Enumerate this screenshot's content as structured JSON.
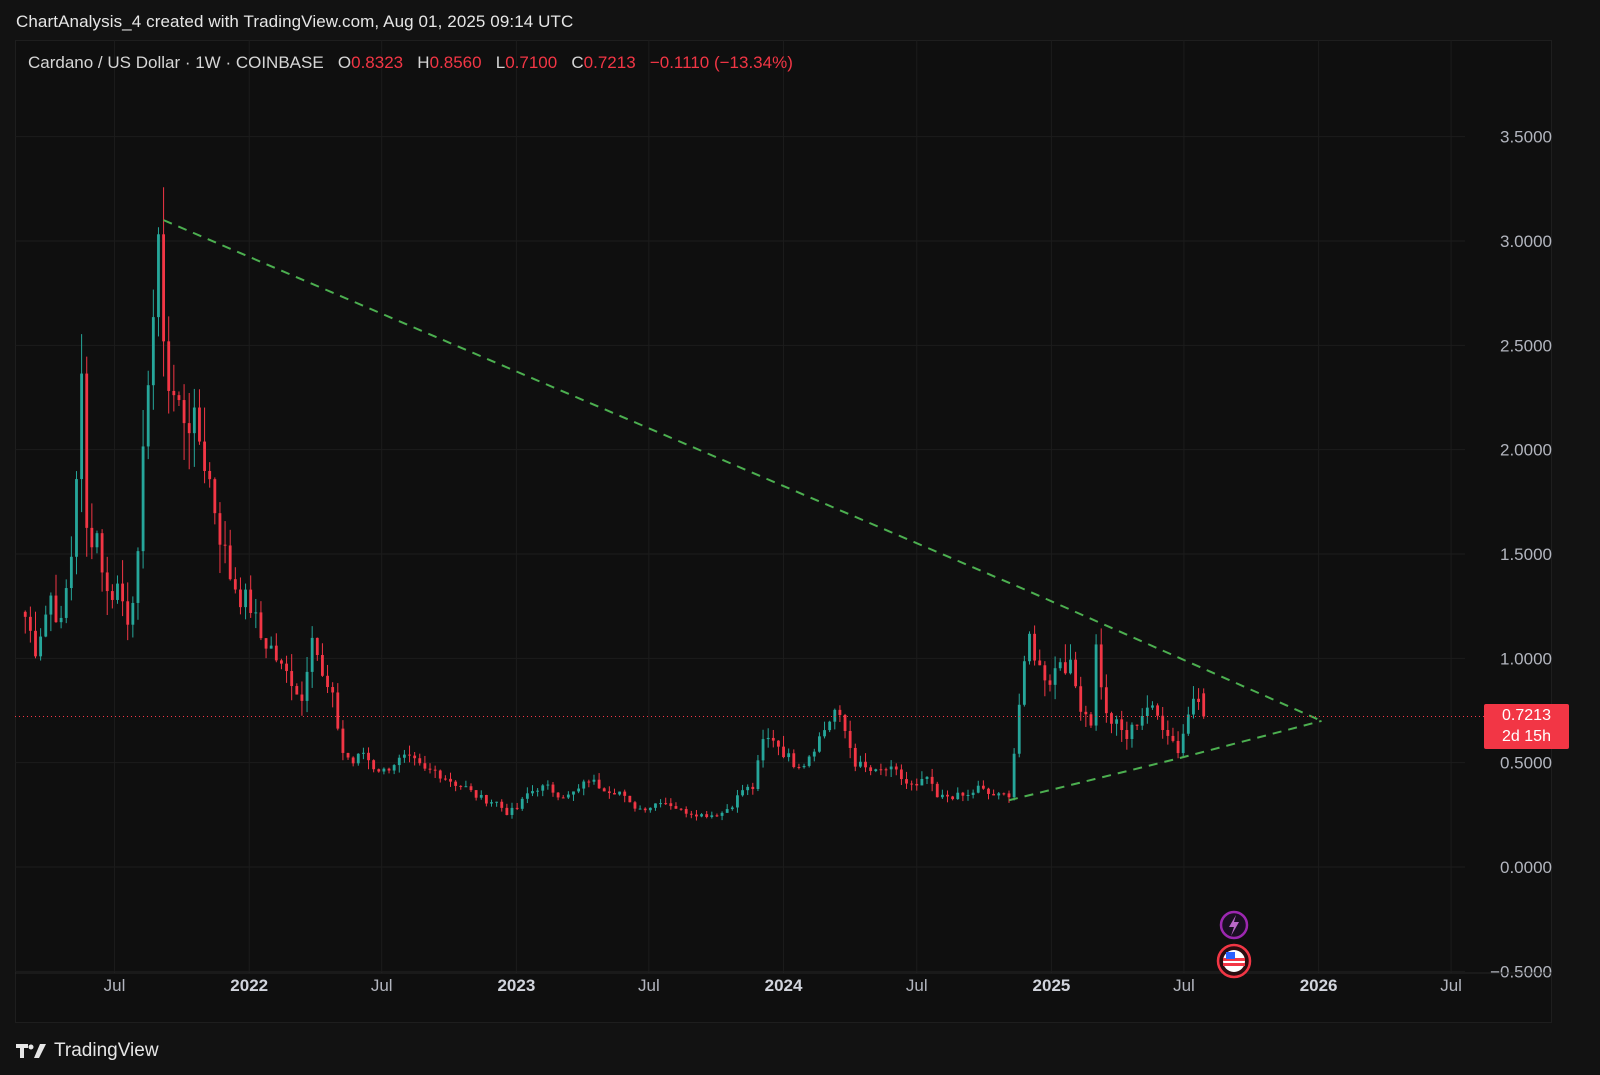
{
  "header": {
    "title": "ChartAnalysis_4 created with TradingView.com, Aug 01, 2025 09:14 UTC"
  },
  "legend": {
    "symbol": "Cardano / US Dollar · 1W · COINBASE",
    "open_key": "O",
    "open": "0.8323",
    "high_key": "H",
    "high": "0.8560",
    "low_key": "L",
    "low": "0.7100",
    "close_key": "C",
    "close": "0.7213",
    "change": "−0.1110 (−13.34%)"
  },
  "price_badge": {
    "price": "0.7213",
    "countdown": "2d 15h"
  },
  "footer": {
    "brand": "TradingView"
  },
  "colors": {
    "up": "#26a69a",
    "down": "#f23645",
    "trendline": "#4caf50",
    "grid": "#1c1c1c",
    "axis_text": "#b2b5be",
    "last_price": "#f23645"
  },
  "icons": [
    "lightning-event-icon",
    "us-flag-event-icon",
    "tradingview-logo-icon"
  ],
  "chart_data": {
    "type": "candlestick",
    "symbol": "ADAUSD",
    "timeframe": "1W",
    "x_ticks": [
      {
        "label": "Jul",
        "date": "2021-07-01",
        "bold": false
      },
      {
        "label": "2022",
        "date": "2022-01-01",
        "bold": true
      },
      {
        "label": "Jul",
        "date": "2022-07-01",
        "bold": false
      },
      {
        "label": "2023",
        "date": "2023-01-01",
        "bold": true
      },
      {
        "label": "Jul",
        "date": "2023-07-01",
        "bold": false
      },
      {
        "label": "2024",
        "date": "2024-01-01",
        "bold": true
      },
      {
        "label": "Jul",
        "date": "2024-07-01",
        "bold": false
      },
      {
        "label": "2025",
        "date": "2025-01-01",
        "bold": true
      },
      {
        "label": "Jul",
        "date": "2025-07-01",
        "bold": false
      },
      {
        "label": "2026",
        "date": "2026-01-01",
        "bold": true
      },
      {
        "label": "Jul",
        "date": "2026-07-01",
        "bold": false
      }
    ],
    "y_ticks": [
      "3.5000",
      "3.0000",
      "2.5000",
      "2.0000",
      "1.5000",
      "1.0000",
      "0.5000",
      "0.0000",
      "−0.5000"
    ],
    "y_tick_values": [
      3.5,
      3.0,
      2.5,
      2.0,
      1.5,
      1.0,
      0.5,
      0.0,
      -0.5
    ],
    "xlim": [
      "2021-02-15",
      "2026-07-20"
    ],
    "ylim": [
      -0.52,
      3.7
    ],
    "last_price": 0.7213,
    "anchors": [
      [
        "2021-03-01",
        1.2
      ],
      [
        "2021-03-15",
        1.05
      ],
      [
        "2021-04-05",
        1.3
      ],
      [
        "2021-04-19",
        1.15
      ],
      [
        "2021-05-03",
        1.5
      ],
      [
        "2021-05-17",
        2.3
      ],
      [
        "2021-05-24",
        1.6
      ],
      [
        "2021-06-07",
        1.6
      ],
      [
        "2021-06-21",
        1.3
      ],
      [
        "2021-07-05",
        1.35
      ],
      [
        "2021-07-19",
        1.2
      ],
      [
        "2021-08-02",
        1.45
      ],
      [
        "2021-08-16",
        2.4
      ],
      [
        "2021-08-30",
        2.9
      ],
      [
        "2021-09-13",
        2.3
      ],
      [
        "2021-09-27",
        2.2
      ],
      [
        "2021-10-11",
        2.15
      ],
      [
        "2021-10-25",
        2.05
      ],
      [
        "2021-11-08",
        1.85
      ],
      [
        "2021-11-22",
        1.6
      ],
      [
        "2021-12-06",
        1.4
      ],
      [
        "2021-12-20",
        1.3
      ],
      [
        "2022-01-03",
        1.25
      ],
      [
        "2022-01-17",
        1.1
      ],
      [
        "2022-01-31",
        1.05
      ],
      [
        "2022-02-14",
        0.95
      ],
      [
        "2022-02-28",
        0.9
      ],
      [
        "2022-03-14",
        0.8
      ],
      [
        "2022-03-28",
        1.15
      ],
      [
        "2022-04-11",
        0.9
      ],
      [
        "2022-04-25",
        0.8
      ],
      [
        "2022-05-09",
        0.55
      ],
      [
        "2022-05-23",
        0.5
      ],
      [
        "2022-06-06",
        0.55
      ],
      [
        "2022-06-20",
        0.48
      ],
      [
        "2022-07-04",
        0.46
      ],
      [
        "2022-07-18",
        0.5
      ],
      [
        "2022-08-01",
        0.52
      ],
      [
        "2022-08-15",
        0.5
      ],
      [
        "2022-08-29",
        0.46
      ],
      [
        "2022-09-12",
        0.46
      ],
      [
        "2022-09-26",
        0.43
      ],
      [
        "2022-10-10",
        0.4
      ],
      [
        "2022-10-24",
        0.38
      ],
      [
        "2022-11-07",
        0.34
      ],
      [
        "2022-11-21",
        0.32
      ],
      [
        "2022-12-05",
        0.31
      ],
      [
        "2022-12-19",
        0.26
      ],
      [
        "2023-01-02",
        0.28
      ],
      [
        "2023-01-16",
        0.35
      ],
      [
        "2023-01-30",
        0.38
      ],
      [
        "2023-02-13",
        0.38
      ],
      [
        "2023-02-27",
        0.35
      ],
      [
        "2023-03-13",
        0.34
      ],
      [
        "2023-03-27",
        0.37
      ],
      [
        "2023-04-10",
        0.42
      ],
      [
        "2023-04-24",
        0.39
      ],
      [
        "2023-05-08",
        0.37
      ],
      [
        "2023-05-22",
        0.36
      ],
      [
        "2023-06-05",
        0.3
      ],
      [
        "2023-06-19",
        0.28
      ],
      [
        "2023-07-03",
        0.29
      ],
      [
        "2023-07-17",
        0.32
      ],
      [
        "2023-07-31",
        0.3
      ],
      [
        "2023-08-14",
        0.27
      ],
      [
        "2023-08-28",
        0.26
      ],
      [
        "2023-09-11",
        0.25
      ],
      [
        "2023-09-25",
        0.25
      ],
      [
        "2023-10-09",
        0.26
      ],
      [
        "2023-10-23",
        0.3
      ],
      [
        "2023-11-06",
        0.37
      ],
      [
        "2023-11-20",
        0.38
      ],
      [
        "2023-12-04",
        0.6
      ],
      [
        "2023-12-18",
        0.62
      ],
      [
        "2024-01-01",
        0.55
      ],
      [
        "2024-01-15",
        0.5
      ],
      [
        "2024-01-29",
        0.5
      ],
      [
        "2024-02-12",
        0.58
      ],
      [
        "2024-02-26",
        0.66
      ],
      [
        "2024-03-11",
        0.75
      ],
      [
        "2024-03-25",
        0.65
      ],
      [
        "2024-04-08",
        0.5
      ],
      [
        "2024-04-22",
        0.47
      ],
      [
        "2024-05-06",
        0.45
      ],
      [
        "2024-05-20",
        0.47
      ],
      [
        "2024-06-03",
        0.45
      ],
      [
        "2024-06-17",
        0.4
      ],
      [
        "2024-07-01",
        0.38
      ],
      [
        "2024-07-15",
        0.43
      ],
      [
        "2024-07-29",
        0.33
      ],
      [
        "2024-08-12",
        0.34
      ],
      [
        "2024-08-26",
        0.34
      ],
      [
        "2024-09-09",
        0.34
      ],
      [
        "2024-09-23",
        0.38
      ],
      [
        "2024-10-07",
        0.35
      ],
      [
        "2024-10-21",
        0.34
      ],
      [
        "2024-11-04",
        0.35
      ],
      [
        "2024-11-11",
        0.55
      ],
      [
        "2024-11-18",
        0.78
      ],
      [
        "2024-12-02",
        1.1
      ],
      [
        "2024-12-16",
        0.95
      ],
      [
        "2024-12-30",
        0.9
      ],
      [
        "2025-01-13",
        1.0
      ],
      [
        "2025-01-27",
        0.95
      ],
      [
        "2025-02-10",
        0.78
      ],
      [
        "2025-02-24",
        0.7
      ],
      [
        "2025-03-03",
        1.05
      ],
      [
        "2025-03-17",
        0.72
      ],
      [
        "2025-03-31",
        0.68
      ],
      [
        "2025-04-14",
        0.62
      ],
      [
        "2025-04-28",
        0.7
      ],
      [
        "2025-05-12",
        0.77
      ],
      [
        "2025-05-26",
        0.72
      ],
      [
        "2025-06-09",
        0.65
      ],
      [
        "2025-06-23",
        0.56
      ],
      [
        "2025-07-07",
        0.73
      ],
      [
        "2025-07-14",
        0.82
      ],
      [
        "2025-07-21",
        0.83
      ],
      [
        "2025-07-28",
        0.7213
      ]
    ],
    "trendlines": [
      {
        "name": "upper-trendline",
        "points": [
          [
            "2021-09-06",
            3.1
          ],
          [
            "2024-12-02",
            1.32
          ],
          [
            "2026-01-05",
            0.7
          ]
        ]
      },
      {
        "name": "lower-trendline",
        "points": [
          [
            "2024-11-04",
            0.32
          ],
          [
            "2025-06-23",
            0.52
          ],
          [
            "2026-01-05",
            0.7
          ]
        ]
      }
    ]
  }
}
